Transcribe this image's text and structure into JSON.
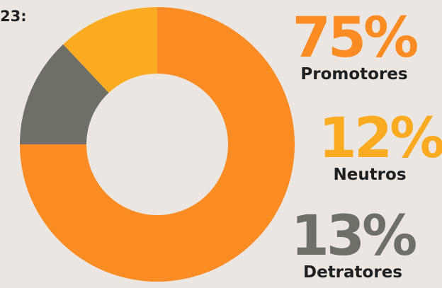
{
  "chart_data": {
    "type": "donut",
    "title": "23:",
    "categories": [
      "Promotores",
      "Detratores",
      "Neutros"
    ],
    "values": [
      75,
      13,
      12
    ],
    "value_labels": [
      "75%",
      "13%",
      "12%"
    ],
    "colors": [
      "#fb8c24",
      "#6f6e67",
      "#fbab22"
    ]
  }
}
